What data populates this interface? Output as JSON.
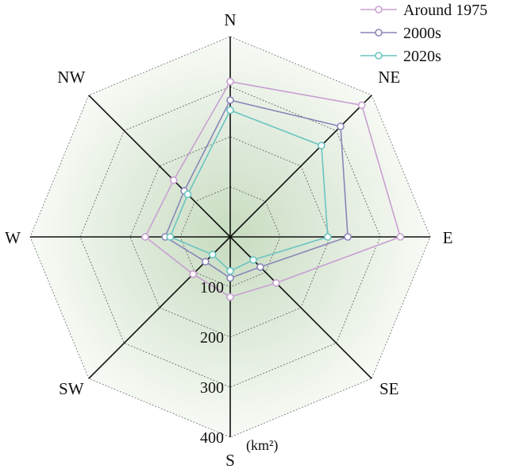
{
  "chart_data": {
    "type": "radar",
    "directions": [
      "N",
      "NE",
      "E",
      "SE",
      "S",
      "SW",
      "W",
      "NW"
    ],
    "radial_ticks": [
      100,
      200,
      300,
      400
    ],
    "rmax": 400,
    "unit_label": "(km²)",
    "grid": true,
    "legend_position": "top-right",
    "series": [
      {
        "name": "Around 1975",
        "color": "#c9a0d2",
        "values": [
          310,
          372,
          340,
          130,
          120,
          105,
          170,
          160
        ]
      },
      {
        "name": "2000s",
        "color": "#8a86b8",
        "values": [
          273,
          312,
          235,
          85,
          82,
          70,
          130,
          130
        ]
      },
      {
        "name": "2020s",
        "color": "#6ac4c0",
        "values": [
          253,
          258,
          195,
          65,
          68,
          50,
          120,
          120
        ]
      }
    ]
  }
}
